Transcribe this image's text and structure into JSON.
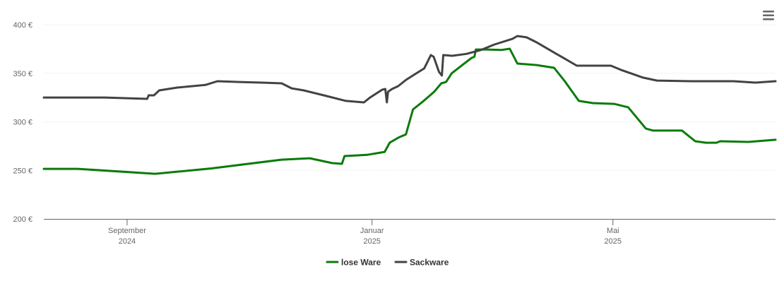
{
  "chart_data": {
    "type": "line",
    "title": "",
    "xlabel": "",
    "ylabel": "",
    "x_unit": "days relative to 2024-09-01",
    "xlim": [
      -41.5,
      323
    ],
    "ylim": [
      200,
      400
    ],
    "yticks": [
      200,
      250,
      300,
      350,
      400
    ],
    "ytick_labels": [
      "200 €",
      "250 €",
      "300 €",
      "350 €",
      "400 €"
    ],
    "xticks": [
      {
        "day": 0,
        "line1": "September",
        "line2": "2024"
      },
      {
        "day": 122,
        "line1": "Januar",
        "line2": "2025"
      },
      {
        "day": 242,
        "line1": "Mai",
        "line2": "2025"
      }
    ],
    "grid": true,
    "legend_position": "bottom-center",
    "series": [
      {
        "name": "lose Ware",
        "color": "#0a7b0a",
        "points": [
          [
            -41.5,
            251.6
          ],
          [
            -24.6,
            251.6
          ],
          [
            14,
            246.5
          ],
          [
            42,
            252
          ],
          [
            77,
            261
          ],
          [
            91,
            262.5
          ],
          [
            102,
            257.5
          ],
          [
            107,
            256.7
          ],
          [
            108.3,
            264.7
          ],
          [
            119.5,
            266
          ],
          [
            128.3,
            269
          ],
          [
            130.8,
            278.5
          ],
          [
            135.4,
            284
          ],
          [
            138.9,
            287
          ],
          [
            142.4,
            312.7
          ],
          [
            147.7,
            321.5
          ],
          [
            153,
            331
          ],
          [
            156.5,
            339.6
          ],
          [
            158.9,
            341
          ],
          [
            161.7,
            350
          ],
          [
            167,
            358.5
          ],
          [
            171.6,
            365.8
          ],
          [
            173,
            367
          ],
          [
            173.7,
            374.5
          ],
          [
            179.3,
            374.5
          ],
          [
            186.4,
            374
          ],
          [
            190.6,
            375.3
          ],
          [
            194.4,
            360
          ],
          [
            203.9,
            358.5
          ],
          [
            212.7,
            355.6
          ],
          [
            218,
            341.8
          ],
          [
            225,
            321.5
          ],
          [
            232,
            319.3
          ],
          [
            242.6,
            318.5
          ],
          [
            249.6,
            315
          ],
          [
            258.4,
            293
          ],
          [
            262,
            291
          ],
          [
            276.4,
            291
          ],
          [
            283,
            280
          ],
          [
            288.3,
            278.5
          ],
          [
            293.6,
            278.5
          ],
          [
            295.4,
            280
          ],
          [
            309.4,
            279.3
          ],
          [
            323,
            281.5
          ]
        ]
      },
      {
        "name": "Sackware",
        "color": "#434343",
        "points": [
          [
            -41.5,
            325
          ],
          [
            -11,
            325
          ],
          [
            10,
            323.6
          ],
          [
            10.7,
            327.3
          ],
          [
            13.4,
            327.3
          ],
          [
            16,
            332.4
          ],
          [
            25,
            335.3
          ],
          [
            39,
            338
          ],
          [
            45,
            341.8
          ],
          [
            56,
            341
          ],
          [
            67,
            340.4
          ],
          [
            77,
            339.6
          ],
          [
            82,
            334.5
          ],
          [
            88,
            332.4
          ],
          [
            98,
            327.3
          ],
          [
            109,
            321.5
          ],
          [
            118,
            320
          ],
          [
            121,
            325
          ],
          [
            127,
            333
          ],
          [
            128.6,
            333.8
          ],
          [
            129.4,
            320
          ],
          [
            130,
            331
          ],
          [
            132,
            333.8
          ],
          [
            135,
            336.7
          ],
          [
            139,
            343.3
          ],
          [
            144,
            349.8
          ],
          [
            148,
            355
          ],
          [
            151.3,
            368.7
          ],
          [
            152.7,
            367
          ],
          [
            155.4,
            351.3
          ],
          [
            156.8,
            347.6
          ],
          [
            157.5,
            368.7
          ],
          [
            162,
            368
          ],
          [
            169,
            370
          ],
          [
            176,
            373.8
          ],
          [
            183,
            379.6
          ],
          [
            192,
            385.5
          ],
          [
            194.4,
            388.4
          ],
          [
            199,
            387
          ],
          [
            204,
            381.8
          ],
          [
            213,
            371
          ],
          [
            218,
            365
          ],
          [
            224,
            357.8
          ],
          [
            241,
            357.8
          ],
          [
            246,
            353.5
          ],
          [
            257,
            345.5
          ],
          [
            264,
            342.5
          ],
          [
            281,
            341.8
          ],
          [
            302,
            341.8
          ],
          [
            313,
            340.4
          ],
          [
            323,
            341.8
          ]
        ]
      }
    ]
  },
  "menu_icon": "hamburger-menu-icon"
}
